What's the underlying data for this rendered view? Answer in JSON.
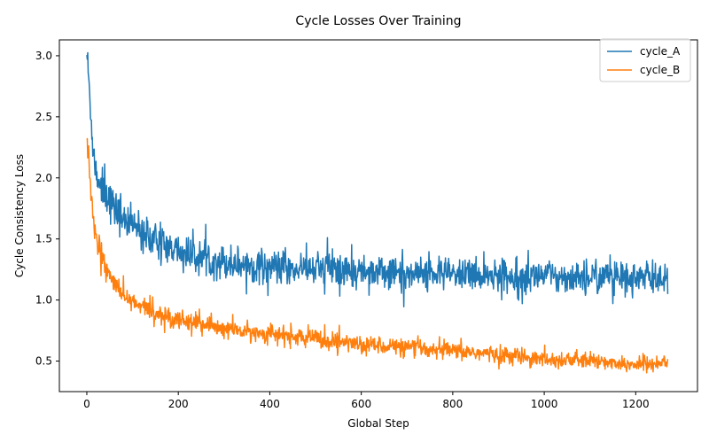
{
  "chart_data": {
    "type": "line",
    "title": "Cycle Losses Over Training",
    "xlabel": "Global Step",
    "ylabel": "Cycle Consistency Loss",
    "xlim": [
      -60,
      1335
    ],
    "ylim": [
      0.25,
      3.13
    ],
    "xticks": [
      0,
      200,
      400,
      600,
      800,
      1000,
      1200
    ],
    "yticks": [
      0.5,
      1.0,
      1.5,
      2.0,
      2.5,
      3.0
    ],
    "xtick_labels": [
      "0",
      "200",
      "400",
      "600",
      "800",
      "1000",
      "1200"
    ],
    "ytick_labels": [
      "0.5",
      "1.0",
      "1.5",
      "2.0",
      "2.5",
      "3.0"
    ],
    "grid": false,
    "legend": {
      "position": "top-right",
      "entries": [
        "cycle_A",
        "cycle_B"
      ]
    },
    "n_steps": 1271,
    "series": [
      {
        "name": "cycle_A",
        "color": "#1f77b4",
        "x": [
          0,
          5,
          10,
          15,
          20,
          25,
          30,
          40,
          50,
          60,
          70,
          80,
          90,
          100,
          120,
          140,
          160,
          180,
          200,
          220,
          250,
          280,
          300,
          350,
          400,
          450,
          500,
          550,
          600,
          650,
          700,
          750,
          800,
          850,
          900,
          950,
          1000,
          1050,
          1100,
          1150,
          1200,
          1250,
          1270
        ],
        "values": [
          3.03,
          2.75,
          2.45,
          2.2,
          2.05,
          2.0,
          1.95,
          1.9,
          1.82,
          1.75,
          1.7,
          1.65,
          1.62,
          1.6,
          1.55,
          1.5,
          1.46,
          1.43,
          1.4,
          1.37,
          1.35,
          1.33,
          1.31,
          1.29,
          1.27,
          1.26,
          1.25,
          1.24,
          1.24,
          1.23,
          1.22,
          1.22,
          1.21,
          1.21,
          1.2,
          1.2,
          1.2,
          1.19,
          1.19,
          1.19,
          1.18,
          1.18,
          1.18
        ],
        "noise": 0.1
      },
      {
        "name": "cycle_B",
        "color": "#ff7f0e",
        "x": [
          0,
          5,
          10,
          15,
          20,
          25,
          30,
          40,
          50,
          60,
          70,
          80,
          90,
          100,
          120,
          140,
          160,
          180,
          200,
          220,
          250,
          280,
          300,
          350,
          400,
          450,
          500,
          550,
          600,
          650,
          700,
          750,
          800,
          850,
          900,
          950,
          1000,
          1050,
          1100,
          1150,
          1200,
          1250,
          1270
        ],
        "values": [
          2.35,
          2.1,
          1.8,
          1.6,
          1.5,
          1.42,
          1.36,
          1.28,
          1.2,
          1.12,
          1.07,
          1.03,
          1.0,
          0.98,
          0.94,
          0.91,
          0.88,
          0.86,
          0.85,
          0.83,
          0.8,
          0.78,
          0.76,
          0.74,
          0.72,
          0.7,
          0.68,
          0.66,
          0.64,
          0.63,
          0.61,
          0.6,
          0.58,
          0.57,
          0.55,
          0.54,
          0.52,
          0.51,
          0.5,
          0.49,
          0.48,
          0.48,
          0.5
        ],
        "noise": 0.07
      }
    ]
  }
}
